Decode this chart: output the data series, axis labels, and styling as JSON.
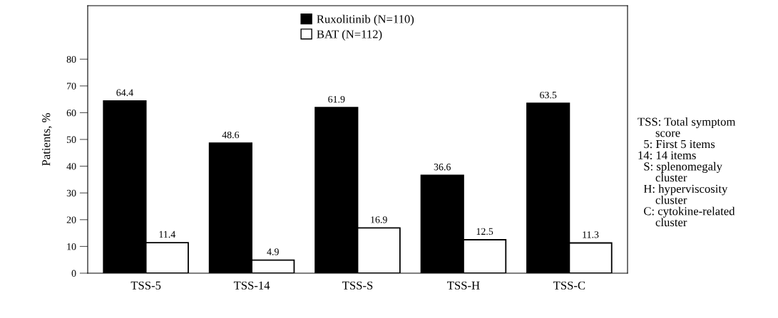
{
  "chart_data": {
    "type": "bar",
    "ylabel": "Patients, %",
    "categories": [
      "TSS-5",
      "TSS-14",
      "TSS-S",
      "TSS-H",
      "TSS-C"
    ],
    "series": [
      {
        "name": "Ruxolitinib (N=110)",
        "color": "#000000",
        "values": [
          64.4,
          48.6,
          61.9,
          36.6,
          63.5
        ]
      },
      {
        "name": "BAT (N=112)",
        "color": "#ffffff",
        "values": [
          11.4,
          4.9,
          16.9,
          12.5,
          11.3
        ]
      }
    ],
    "ylim": [
      0,
      100
    ],
    "yticks": [
      0,
      10,
      20,
      30,
      40,
      50,
      60,
      70,
      80
    ],
    "data_labels": true,
    "legend": "top",
    "grid": false,
    "annotations": [
      "TSS: Total symptom\n      score\n  5: First 5 items\n14: 14 items\n  S: splenomegaly\n      cluster\n  H: hyperviscosity\n      cluster\n  C: cytokine-related\n      cluster"
    ]
  }
}
